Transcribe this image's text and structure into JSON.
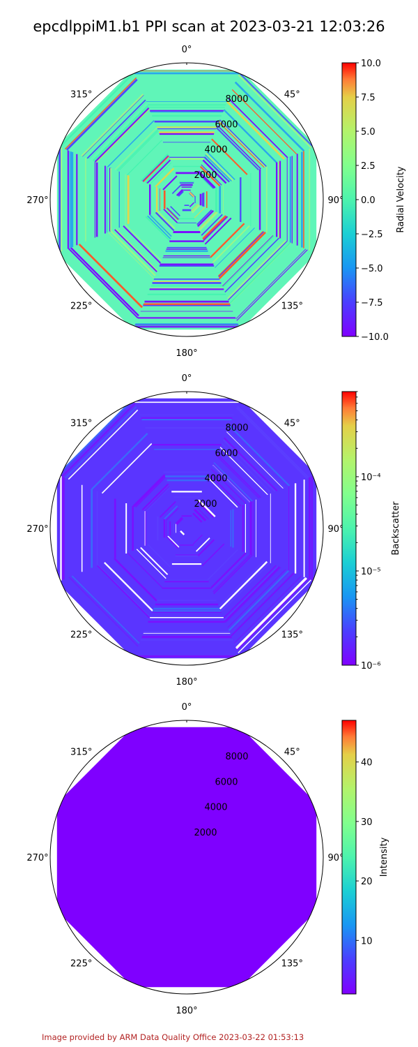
{
  "figure": {
    "title": "epcdlppiM1.b1 PPI scan at 2023-03-21 12:03:26",
    "footer": "Image provided by ARM Data Quality Office 2023-03-22 01:53:13"
  },
  "chart_data": [
    {
      "type": "heatmap",
      "projection": "polar",
      "title": "",
      "colorbar_label": "Radial Velocity",
      "colorbar_scale": "linear",
      "colorbar_range": [
        -10,
        10
      ],
      "colorbar_ticks": [
        "10.0",
        "7.5",
        "5.0",
        "2.5",
        "0.0",
        "−2.5",
        "−5.0",
        "−7.5",
        "−10.0"
      ],
      "colormap": "rainbow",
      "angular_ticks": [
        "0°",
        "45°",
        "90°",
        "135°",
        "180°",
        "225°",
        "270°",
        "315°"
      ],
      "radial_ticks": [
        "2000",
        "4000",
        "6000",
        "8000"
      ],
      "radial_max": 10000,
      "polygon_max_range": 9500,
      "dominant_color": "#60f5b8"
    },
    {
      "type": "heatmap",
      "projection": "polar",
      "title": "",
      "colorbar_label": "Backscatter",
      "colorbar_scale": "log",
      "colorbar_range": [
        1e-06,
        0.0008
      ],
      "colorbar_ticks": [
        "10⁻⁴",
        "10⁻⁵",
        "10⁻⁶"
      ],
      "colormap": "rainbow",
      "angular_ticks": [
        "0°",
        "45°",
        "90°",
        "135°",
        "180°",
        "225°",
        "270°",
        "315°"
      ],
      "radial_ticks": [
        "2000",
        "4000",
        "6000",
        "8000"
      ],
      "radial_max": 10000,
      "polygon_max_range": 9500,
      "dominant_color": "#5a35ff"
    },
    {
      "type": "heatmap",
      "projection": "polar",
      "title": "",
      "colorbar_label": "Intensity",
      "colorbar_scale": "linear",
      "colorbar_range": [
        1,
        47
      ],
      "colorbar_ticks": [
        "40",
        "30",
        "20",
        "10"
      ],
      "colormap": "rainbow",
      "angular_ticks": [
        "0°",
        "45°",
        "90°",
        "135°",
        "180°",
        "225°",
        "270°",
        "315°"
      ],
      "radial_ticks": [
        "2000",
        "4000",
        "6000",
        "8000"
      ],
      "radial_max": 10000,
      "polygon_max_range": 9500,
      "dominant_color": "#7f00ff"
    }
  ]
}
